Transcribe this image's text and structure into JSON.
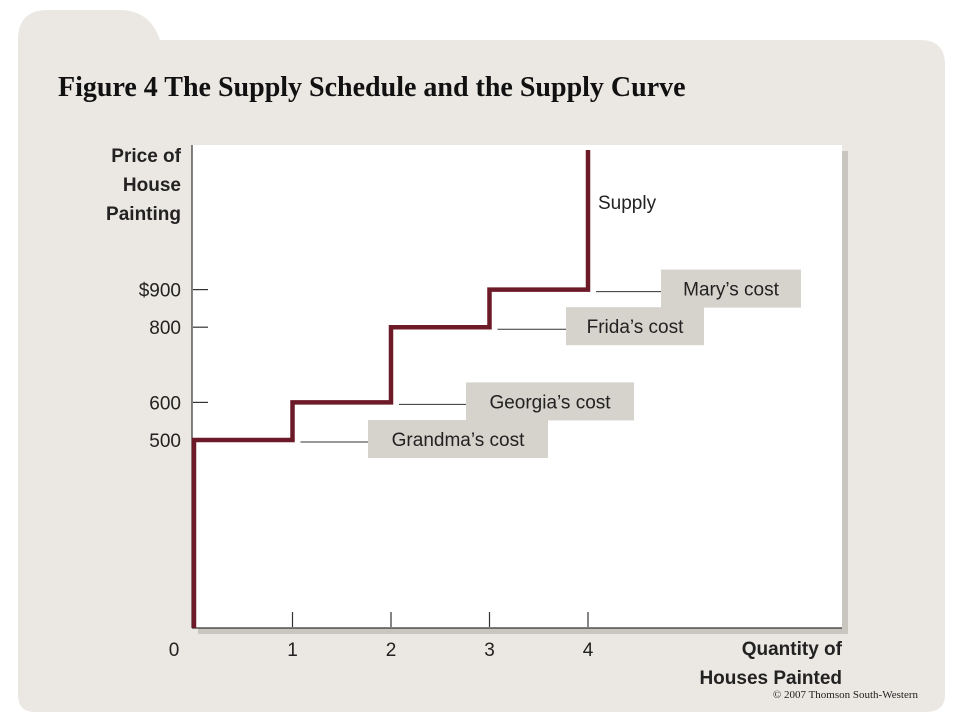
{
  "slide": {
    "title": "Figure 4 The Supply Schedule and the Supply Curve",
    "copyright": "© 2007 Thomson South-Western"
  },
  "colors": {
    "slide_background": "#ebe7e2",
    "plot_background": "#ffffff",
    "supply_curve": "#6d1a28",
    "callout_box": "#d6d2cc",
    "text": "#222222"
  },
  "chart_data": {
    "type": "line",
    "step": true,
    "ylabel": [
      "Price of",
      "House",
      "Painting"
    ],
    "xlabel": [
      "Quantity of",
      "Houses Painted"
    ],
    "x_ticks": [
      "0",
      "1",
      "2",
      "3",
      "4"
    ],
    "y_ticks": [
      {
        "value": 500,
        "label": "500"
      },
      {
        "value": 600,
        "label": "600"
      },
      {
        "value": 800,
        "label": "800"
      },
      {
        "value": 900,
        "label": "$900"
      }
    ],
    "xlim": [
      0,
      6.5
    ],
    "ylim": [
      0,
      1300
    ],
    "series": [
      {
        "name": "Supply",
        "x": [
          0,
          0,
          1,
          1,
          2,
          2,
          3,
          3,
          4,
          4
        ],
        "y": [
          0,
          500,
          500,
          600,
          600,
          800,
          800,
          900,
          900,
          1300
        ]
      }
    ],
    "annotations": [
      {
        "label": "Grandma’s cost",
        "price": 500
      },
      {
        "label": "Georgia’s cost",
        "price": 600
      },
      {
        "label": "Frida’s cost",
        "price": 800
      },
      {
        "label": "Mary’s cost",
        "price": 900
      }
    ],
    "grid": false
  }
}
